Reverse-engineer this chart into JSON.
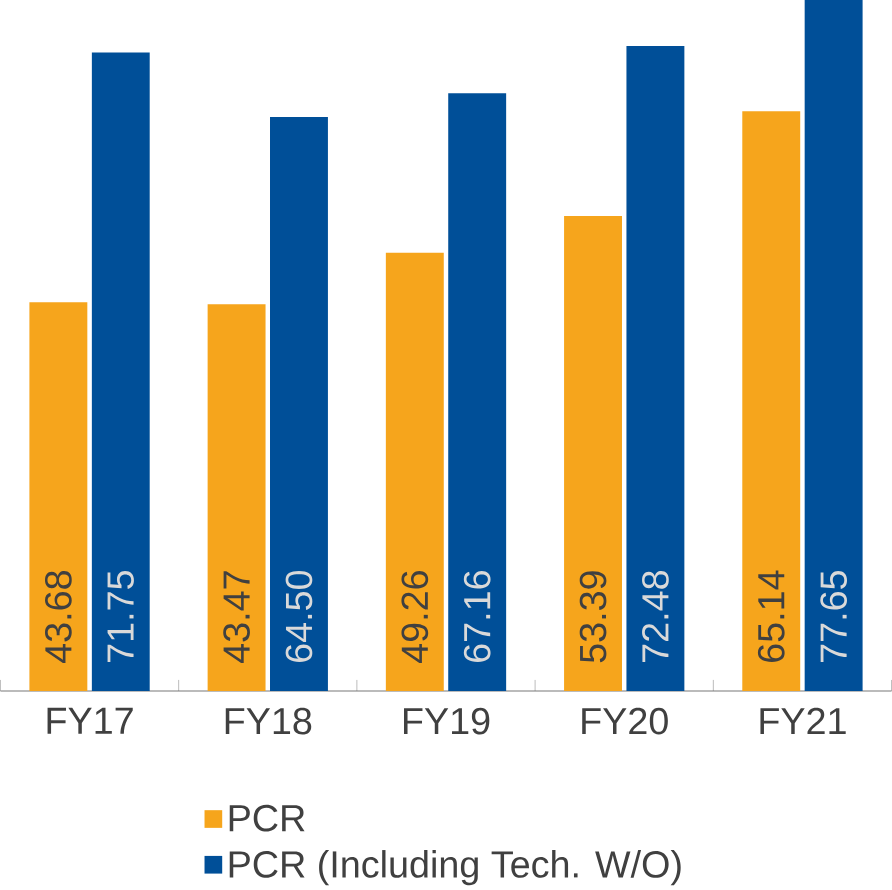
{
  "chart_data": {
    "type": "bar",
    "categories": [
      "FY17",
      "FY18",
      "FY19",
      "FY20",
      "FY21"
    ],
    "series": [
      {
        "name": "PCR",
        "color": "#f6a51c",
        "values": [
          43.68,
          43.47,
          49.26,
          53.39,
          65.14
        ],
        "value_labels": [
          "43.68",
          "43.47",
          "49.26",
          "53.39",
          "65.14"
        ]
      },
      {
        "name": "PCR (Including Tech. W/O)",
        "color": "#004f98",
        "values": [
          71.75,
          64.5,
          67.16,
          72.48,
          77.65
        ],
        "value_labels": [
          "71.75",
          "64.50",
          "67.16",
          "72.48",
          "77.65"
        ]
      }
    ],
    "data_labels": true,
    "legend": "bottom"
  }
}
